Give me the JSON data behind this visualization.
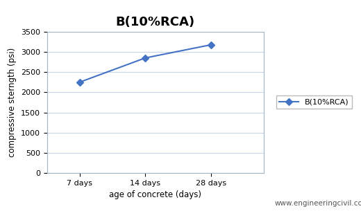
{
  "title": "B(10%RCA)",
  "xlabel": "age of concrete (days)",
  "ylabel": "compressive sterngth (psi)",
  "watermark": "www.engineeringcivil.com",
  "x_labels": [
    "7 days",
    "14 days",
    "28 days"
  ],
  "x_values": [
    1,
    2,
    3
  ],
  "y_values": [
    2250,
    2850,
    3175
  ],
  "ylim": [
    0,
    3500
  ],
  "xlim": [
    0.5,
    3.8
  ],
  "yticks": [
    0,
    500,
    1000,
    1500,
    2000,
    2500,
    3000,
    3500
  ],
  "line_color": "#4472C4",
  "marker": "D",
  "marker_size": 5,
  "legend_label": "B(10%RCA)",
  "title_fontsize": 13,
  "axis_label_fontsize": 8.5,
  "tick_fontsize": 8,
  "legend_fontsize": 8,
  "watermark_fontsize": 7.5,
  "background_color": "#ffffff",
  "plot_bg_color": "#ffffff",
  "grid_color": "#c8d4e8",
  "spine_color": "#a0b4c8"
}
